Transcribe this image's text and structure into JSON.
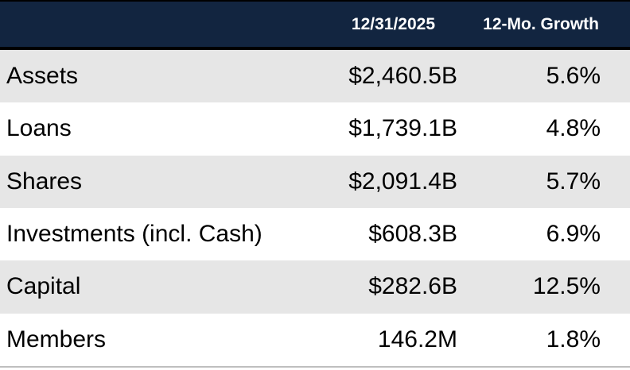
{
  "chart_data": {
    "type": "table",
    "columns": [
      "",
      "12/31/2025",
      "12-Mo. Growth"
    ],
    "rows": [
      [
        "Assets",
        "$2,460.5B",
        "5.6%"
      ],
      [
        "Loans",
        "$1,739.1B",
        "4.8%"
      ],
      [
        "Shares",
        "$2,091.4B",
        "5.7%"
      ],
      [
        "Investments (incl. Cash)",
        "$608.3B",
        "6.9%"
      ],
      [
        "Capital",
        "$282.6B",
        "12.5%"
      ],
      [
        "Members",
        "146.2M",
        "1.8%"
      ]
    ]
  },
  "colors": {
    "header_bg": "#122540",
    "header_text": "#FFFFFF",
    "alt_row_bg": "#E6E6E6",
    "row_bg": "#FFFFFF",
    "top_border": "#000000",
    "bottom_rule": "#BFBFBF",
    "body_text": "#000000"
  }
}
